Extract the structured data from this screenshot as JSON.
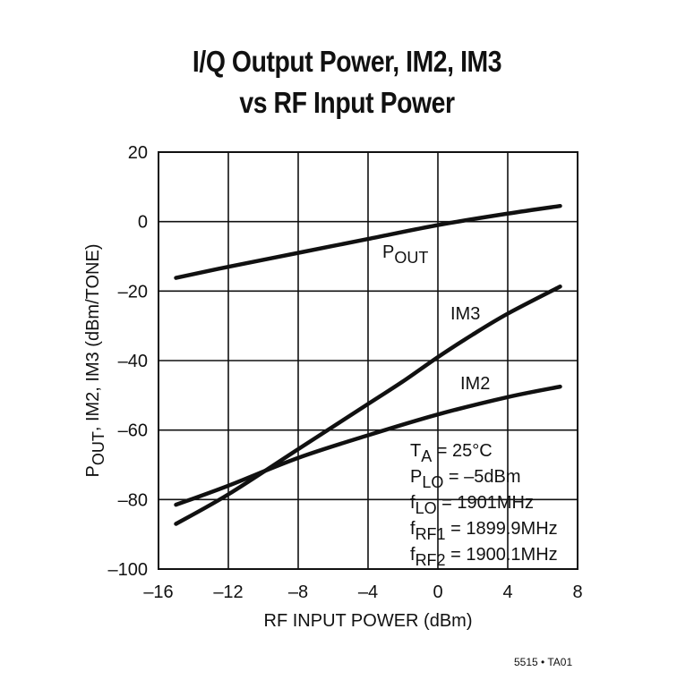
{
  "title": {
    "line1": "I/Q Output Power, IM2, IM3",
    "line2": "vs RF Input Power"
  },
  "figure_id": "5515 • TA01",
  "chart_data": {
    "type": "line",
    "title": "I/Q Output Power, IM2, IM3 vs RF Input Power",
    "xlabel": "RF INPUT POWER (dBm)",
    "ylabel_parts": [
      {
        "text": "P",
        "sub": "OUT"
      },
      {
        "text": ", IM2, IM3 (dBm/TONE)",
        "sub": ""
      }
    ],
    "xlim": [
      -16,
      8
    ],
    "ylim": [
      -100,
      20
    ],
    "xticks": [
      -16,
      -12,
      -8,
      -4,
      0,
      4,
      8
    ],
    "yticks": [
      20,
      0,
      -20,
      -40,
      -60,
      -80,
      -100
    ],
    "xtick_labels": [
      "–16",
      "–12",
      "–8",
      "–4",
      "0",
      "4",
      "8"
    ],
    "ytick_labels": [
      "20",
      "0",
      "–20",
      "–40",
      "–60",
      "–80",
      "–100"
    ],
    "grid": true,
    "series": [
      {
        "name": "POUT",
        "label_parts": [
          {
            "text": "P",
            "sub": "OUT"
          }
        ],
        "x": [
          -15,
          -12,
          -8,
          -4,
          0,
          4,
          7
        ],
        "y": [
          -16.2,
          -13,
          -9,
          -5,
          -1,
          2.3,
          4.5
        ]
      },
      {
        "name": "IM3",
        "label_parts": [
          {
            "text": "IM3",
            "sub": ""
          }
        ],
        "x": [
          -15,
          -12,
          -8,
          -4,
          -2,
          0,
          2,
          4,
          7
        ],
        "y": [
          -87,
          -78.5,
          -65.5,
          -52.5,
          -46,
          -39,
          -32.5,
          -26.5,
          -18.7
        ]
      },
      {
        "name": "IM2",
        "label_parts": [
          {
            "text": "IM2",
            "sub": ""
          }
        ],
        "x": [
          -15,
          -12,
          -8,
          -4,
          0,
          4,
          7
        ],
        "y": [
          -81.5,
          -76,
          -68,
          -61.5,
          -55.5,
          -50.5,
          -47.5
        ]
      }
    ],
    "conditions": [
      [
        {
          "text": "T",
          "sub": "A"
        },
        {
          "text": " = 25°C",
          "sub": ""
        }
      ],
      [
        {
          "text": "P",
          "sub": "LO"
        },
        {
          "text": " = –5dBm",
          "sub": ""
        }
      ],
      [
        {
          "text": "f",
          "sub": "LO"
        },
        {
          "text": " = 1901MHz",
          "sub": ""
        }
      ],
      [
        {
          "text": "f",
          "sub": "RF1"
        },
        {
          "text": " = 1899.9MHz",
          "sub": ""
        }
      ],
      [
        {
          "text": "f",
          "sub": "RF2"
        },
        {
          "text": " = 1900.1MHz",
          "sub": ""
        }
      ]
    ]
  }
}
